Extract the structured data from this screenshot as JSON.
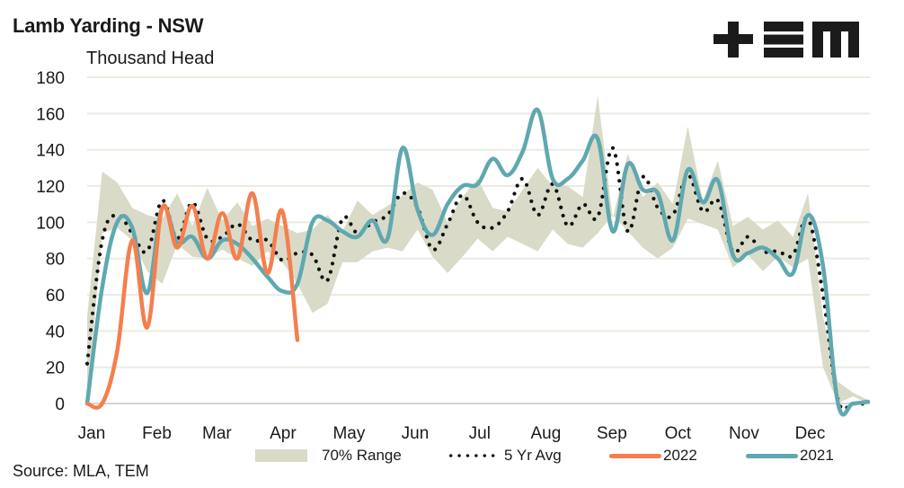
{
  "header": {
    "title": "Lamb Yarding - NSW",
    "unit_label": "Thousand Head",
    "logo_text": "TEM",
    "logo_icon": "tem-logo-icon"
  },
  "footer": {
    "source": "Source: MLA, TEM"
  },
  "colors": {
    "range": "#d9dbc8",
    "avg": "#111111",
    "y2022": "#f47f4d",
    "y2021": "#5fa8b0",
    "grid": "#ebebe1",
    "axis": "#d4d4d4"
  },
  "legend": [
    {
      "key": "range",
      "label": "70% Range"
    },
    {
      "key": "avg",
      "label": "5 Yr Avg"
    },
    {
      "key": "y2022",
      "label": "2022"
    },
    {
      "key": "y2021",
      "label": "2021"
    }
  ],
  "chart_data": {
    "type": "line",
    "title": "Lamb Yarding - NSW",
    "ylabel": "Thousand Head",
    "xlabel": "",
    "ylim": [
      0,
      180
    ],
    "yticks": [
      0,
      20,
      40,
      60,
      80,
      100,
      120,
      140,
      160,
      180
    ],
    "x_unit": "week of year",
    "xlim": [
      0,
      52
    ],
    "month_ticks": [
      {
        "label": "Jan",
        "week": 0
      },
      {
        "label": "Feb",
        "week": 4.4
      },
      {
        "label": "Mar",
        "week": 8.4
      },
      {
        "label": "Apr",
        "week": 12.8
      },
      {
        "label": "May",
        "week": 17.2
      },
      {
        "label": "Jun",
        "week": 21.6
      },
      {
        "label": "Jul",
        "week": 25.9
      },
      {
        "label": "Aug",
        "week": 30.3
      },
      {
        "label": "Sep",
        "week": 34.7
      },
      {
        "label": "Oct",
        "week": 39.1
      },
      {
        "label": "Nov",
        "week": 43.5
      },
      {
        "label": "Dec",
        "week": 47.9
      }
    ],
    "grid": true,
    "legend_position": "bottom",
    "series": [
      {
        "name": "70% Range",
        "kind": "band",
        "weeks": [
          0,
          1,
          2,
          3,
          4,
          5,
          6,
          7,
          8,
          9,
          10,
          11,
          12,
          13,
          14,
          15,
          16,
          17,
          18,
          19,
          20,
          21,
          22,
          23,
          24,
          25,
          26,
          27,
          28,
          29,
          30,
          31,
          32,
          33,
          34,
          35,
          36,
          37,
          38,
          39,
          40,
          41,
          42,
          43,
          44,
          45,
          46,
          47,
          48,
          49,
          50,
          51,
          52
        ],
        "upper": [
          48,
          128,
          122,
          108,
          104,
          102,
          116,
          98,
          119,
          101,
          111,
          98,
          102,
          98,
          94,
          96,
          104,
          95,
          112,
          104,
          109,
          115,
          122,
          118,
          100,
          114,
          124,
          108,
          106,
          118,
          130,
          120,
          120,
          114,
          170,
          102,
          138,
          114,
          122,
          110,
          153,
          112,
          134,
          98,
          103,
          96,
          101,
          92,
          116,
          48,
          12,
          6,
          2
        ],
        "lower": [
          0,
          94,
          97,
          90,
          73,
          66,
          88,
          81,
          80,
          85,
          80,
          76,
          84,
          78,
          66,
          50,
          55,
          78,
          78,
          84,
          86,
          84,
          96,
          81,
          72,
          81,
          91,
          84,
          92,
          88,
          84,
          96,
          88,
          86,
          94,
          104,
          95,
          86,
          80,
          86,
          102,
          99,
          96,
          75,
          82,
          73,
          81,
          75,
          80,
          20,
          0,
          4,
          0
        ]
      },
      {
        "name": "5 Yr Avg",
        "kind": "dotted-line",
        "weeks": [
          0,
          1,
          2,
          3,
          4,
          5,
          6,
          7,
          8,
          9,
          10,
          11,
          12,
          13,
          14,
          15,
          16,
          17,
          18,
          19,
          20,
          21,
          22,
          23,
          24,
          25,
          26,
          27,
          28,
          29,
          30,
          31,
          32,
          33,
          34,
          35,
          36,
          37,
          38,
          39,
          40,
          41,
          42,
          43,
          44,
          45,
          46,
          47,
          48,
          49,
          50,
          51,
          52
        ],
        "values": [
          22,
          90,
          104,
          94,
          84,
          112,
          91,
          111,
          91,
          92,
          99,
          90,
          90,
          79,
          83,
          82,
          68,
          102,
          94,
          100,
          104,
          116,
          108,
          85,
          99,
          115,
          100,
          97,
          106,
          124,
          104,
          121,
          98,
          110,
          103,
          141,
          95,
          125,
          108,
          104,
          126,
          106,
          112,
          84,
          92,
          84,
          84,
          82,
          102,
          60,
          2,
          0,
          0
        ]
      },
      {
        "name": "2022",
        "kind": "line",
        "weeks": [
          0,
          1,
          2,
          3,
          4,
          5,
          6,
          7,
          8,
          9,
          10,
          11,
          12,
          13,
          14
        ],
        "values": [
          0,
          0,
          29,
          90,
          42,
          108,
          86,
          109,
          80,
          105,
          80,
          116,
          72,
          106,
          35
        ]
      },
      {
        "name": "2021",
        "kind": "line",
        "weeks": [
          0,
          1,
          2,
          3,
          4,
          5,
          6,
          7,
          8,
          9,
          10,
          11,
          12,
          13,
          14,
          15,
          16,
          17,
          18,
          19,
          20,
          21,
          22,
          23,
          24,
          25,
          26,
          27,
          28,
          29,
          30,
          31,
          32,
          33,
          34,
          35,
          36,
          37,
          38,
          39,
          40,
          41,
          42,
          43,
          44,
          45,
          46,
          47,
          48,
          49,
          50,
          51,
          52
        ],
        "values": [
          0,
          64,
          100,
          97,
          61,
          108,
          89,
          92,
          80,
          90,
          88,
          80,
          70,
          62,
          66,
          100,
          101,
          95,
          92,
          101,
          91,
          141,
          107,
          93,
          110,
          120,
          121,
          135,
          126,
          139,
          162,
          124,
          124,
          134,
          146,
          95,
          132,
          118,
          116,
          90,
          129,
          111,
          123,
          82,
          83,
          86,
          80,
          72,
          104,
          76,
          0,
          0,
          1
        ]
      }
    ]
  }
}
